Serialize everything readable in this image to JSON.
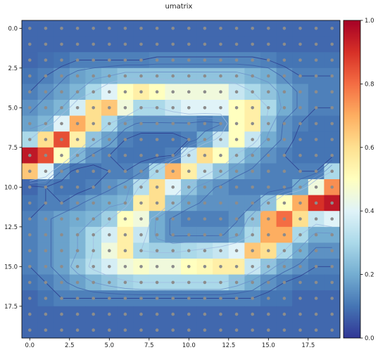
{
  "chart_data": {
    "type": "heatmap",
    "title": "umatrix",
    "xlabel": "",
    "ylabel": "",
    "xlim": [
      -0.5,
      19.5
    ],
    "ylim": [
      19.5,
      -0.5
    ],
    "x_ticks": [
      0.0,
      2.5,
      5.0,
      7.5,
      10.0,
      12.5,
      15.0,
      17.5
    ],
    "x_tick_labels": [
      "0.0",
      "2.5",
      "5.0",
      "7.5",
      "10.0",
      "12.5",
      "15.0",
      "17.5"
    ],
    "y_ticks": [
      0.0,
      2.5,
      5.0,
      7.5,
      10.0,
      12.5,
      15.0,
      17.5
    ],
    "y_tick_labels": [
      "0.0",
      "2.5",
      "5.0",
      "7.5",
      "10.0",
      "12.5",
      "15.0",
      "17.5"
    ],
    "colormap": "RdYlBu_r",
    "colorbar": {
      "min": 0.0,
      "max": 1.0,
      "ticks": [
        0.0,
        0.2,
        0.4,
        0.6,
        0.8,
        1.0
      ],
      "tick_labels": [
        "0.0",
        "0.2",
        "0.4",
        "0.6",
        "0.8",
        "1.0"
      ]
    },
    "node_marker_color": "#8c8c8c",
    "grid": false,
    "values": [
      [
        0.08,
        0.08,
        0.08,
        0.08,
        0.08,
        0.08,
        0.08,
        0.08,
        0.08,
        0.08,
        0.08,
        0.08,
        0.08,
        0.08,
        0.08,
        0.08,
        0.08,
        0.08,
        0.08,
        0.08
      ],
      [
        0.08,
        0.08,
        0.08,
        0.08,
        0.08,
        0.08,
        0.08,
        0.08,
        0.08,
        0.08,
        0.08,
        0.08,
        0.08,
        0.08,
        0.08,
        0.08,
        0.08,
        0.08,
        0.08,
        0.08
      ],
      [
        0.08,
        0.09,
        0.1,
        0.12,
        0.12,
        0.12,
        0.12,
        0.12,
        0.13,
        0.13,
        0.13,
        0.13,
        0.13,
        0.13,
        0.13,
        0.12,
        0.1,
        0.1,
        0.1,
        0.1
      ],
      [
        0.1,
        0.12,
        0.15,
        0.18,
        0.2,
        0.22,
        0.25,
        0.25,
        0.25,
        0.25,
        0.25,
        0.25,
        0.25,
        0.25,
        0.22,
        0.2,
        0.15,
        0.12,
        0.12,
        0.12
      ],
      [
        0.12,
        0.15,
        0.18,
        0.22,
        0.3,
        0.4,
        0.5,
        0.55,
        0.5,
        0.45,
        0.45,
        0.45,
        0.45,
        0.35,
        0.3,
        0.25,
        0.2,
        0.15,
        0.12,
        0.12
      ],
      [
        0.15,
        0.18,
        0.22,
        0.38,
        0.6,
        0.65,
        0.45,
        0.3,
        0.3,
        0.35,
        0.4,
        0.4,
        0.4,
        0.5,
        0.55,
        0.3,
        0.2,
        0.15,
        0.12,
        0.12
      ],
      [
        0.18,
        0.22,
        0.4,
        0.7,
        0.6,
        0.3,
        0.18,
        0.15,
        0.15,
        0.15,
        0.15,
        0.12,
        0.15,
        0.5,
        0.55,
        0.25,
        0.15,
        0.12,
        0.1,
        0.1
      ],
      [
        0.3,
        0.6,
        0.85,
        0.55,
        0.25,
        0.18,
        0.12,
        0.1,
        0.1,
        0.1,
        0.12,
        0.2,
        0.35,
        0.5,
        0.35,
        0.2,
        0.15,
        0.1,
        0.1,
        0.1
      ],
      [
        0.95,
        0.85,
        0.5,
        0.22,
        0.15,
        0.12,
        0.1,
        0.1,
        0.1,
        0.12,
        0.35,
        0.6,
        0.5,
        0.28,
        0.2,
        0.15,
        0.12,
        0.1,
        0.1,
        0.1
      ],
      [
        0.65,
        0.4,
        0.15,
        0.1,
        0.1,
        0.12,
        0.12,
        0.15,
        0.3,
        0.68,
        0.55,
        0.35,
        0.25,
        0.18,
        0.15,
        0.12,
        0.12,
        0.12,
        0.12,
        0.3
      ],
      [
        0.08,
        0.12,
        0.1,
        0.1,
        0.12,
        0.15,
        0.18,
        0.32,
        0.6,
        0.4,
        0.25,
        0.18,
        0.15,
        0.12,
        0.12,
        0.12,
        0.12,
        0.2,
        0.45,
        0.75
      ],
      [
        0.1,
        0.12,
        0.12,
        0.15,
        0.18,
        0.2,
        0.22,
        0.55,
        0.6,
        0.25,
        0.18,
        0.15,
        0.15,
        0.15,
        0.15,
        0.25,
        0.5,
        0.7,
        0.9,
        0.95
      ],
      [
        0.12,
        0.15,
        0.18,
        0.2,
        0.22,
        0.28,
        0.5,
        0.45,
        0.2,
        0.15,
        0.12,
        0.12,
        0.12,
        0.15,
        0.25,
        0.7,
        0.8,
        0.6,
        0.35,
        0.4
      ],
      [
        0.12,
        0.15,
        0.18,
        0.22,
        0.3,
        0.38,
        0.55,
        0.35,
        0.2,
        0.15,
        0.15,
        0.15,
        0.15,
        0.2,
        0.3,
        0.7,
        0.7,
        0.3,
        0.2,
        0.2
      ],
      [
        0.12,
        0.15,
        0.18,
        0.22,
        0.3,
        0.45,
        0.55,
        0.3,
        0.28,
        0.28,
        0.3,
        0.32,
        0.35,
        0.4,
        0.65,
        0.6,
        0.3,
        0.2,
        0.15,
        0.15
      ],
      [
        0.12,
        0.15,
        0.18,
        0.25,
        0.32,
        0.38,
        0.45,
        0.48,
        0.45,
        0.45,
        0.5,
        0.52,
        0.55,
        0.55,
        0.35,
        0.25,
        0.18,
        0.15,
        0.12,
        0.12
      ],
      [
        0.1,
        0.12,
        0.15,
        0.18,
        0.22,
        0.25,
        0.28,
        0.3,
        0.3,
        0.3,
        0.3,
        0.3,
        0.3,
        0.25,
        0.2,
        0.15,
        0.12,
        0.1,
        0.1,
        0.1
      ],
      [
        0.08,
        0.1,
        0.12,
        0.12,
        0.12,
        0.12,
        0.12,
        0.12,
        0.12,
        0.12,
        0.12,
        0.12,
        0.12,
        0.12,
        0.12,
        0.1,
        0.1,
        0.08,
        0.08,
        0.08
      ],
      [
        0.08,
        0.08,
        0.08,
        0.08,
        0.08,
        0.08,
        0.08,
        0.08,
        0.08,
        0.08,
        0.08,
        0.08,
        0.08,
        0.08,
        0.08,
        0.08,
        0.08,
        0.08,
        0.08,
        0.08
      ],
      [
        0.08,
        0.08,
        0.08,
        0.08,
        0.08,
        0.08,
        0.08,
        0.08,
        0.08,
        0.08,
        0.08,
        0.08,
        0.08,
        0.08,
        0.08,
        0.08,
        0.08,
        0.08,
        0.08,
        0.08
      ]
    ]
  }
}
